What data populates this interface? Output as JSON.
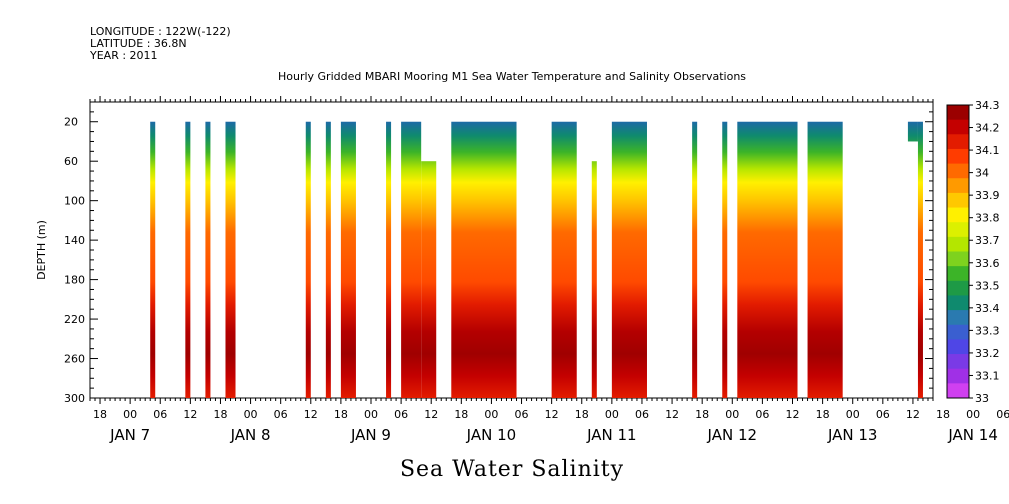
{
  "header": {
    "longitude": "LONGITUDE : 122W(-122)",
    "latitude": "LATITUDE : 36.8N",
    "year": "YEAR : 2011"
  },
  "chart_data": {
    "type": "heatmap",
    "title": "Hourly Gridded MBARI Mooring M1 Sea Water Temperature and Salinity Observations",
    "xlabel": "Sea Water Salinity",
    "ylabel": "DEPTH (m)",
    "x_range_hours": [
      0,
      168
    ],
    "x_start": "2011-01-06 16:00",
    "x_tick_labels": [
      "18",
      "00",
      "06",
      "12",
      "18",
      "00",
      "06",
      "12",
      "18",
      "00",
      "06",
      "12",
      "18",
      "00",
      "06",
      "12",
      "18",
      "00",
      "06",
      "12",
      "18",
      "00",
      "06",
      "12",
      "18",
      "00",
      "06",
      "12",
      "18",
      "00",
      "06",
      "12",
      "18",
      "00",
      "06",
      "12"
    ],
    "day_labels": [
      "JAN  7",
      "JAN  8",
      "JAN  9",
      "JAN 10",
      "JAN 11",
      "JAN 12",
      "JAN 13",
      "JAN 14"
    ],
    "ylim": [
      300,
      0
    ],
    "y_ticks": [
      20,
      60,
      100,
      140,
      180,
      220,
      260,
      300
    ],
    "colorbar": {
      "levels": [
        "34.3",
        "34.2",
        "34.1",
        "34",
        "33.9",
        "33.8",
        "33.7",
        "33.6",
        "33.5",
        "33.4",
        "33.3",
        "33.2",
        "33.1",
        "33"
      ],
      "colors": [
        "#9b0000",
        "#c40000",
        "#e31c00",
        "#ff3c00",
        "#ff6a00",
        "#ff9a00",
        "#ffc800",
        "#fff000",
        "#dcf000",
        "#b4e600",
        "#7ed21e",
        "#3cb428",
        "#1e9a46",
        "#0f8a6e",
        "#2a7ab0",
        "#3a5fd0",
        "#4f46e6",
        "#7a3ae6",
        "#a030e6",
        "#d040f0"
      ]
    },
    "data_columns_hours": [
      {
        "start": 12.0,
        "end": 13.0,
        "top": 20,
        "bottom": 300
      },
      {
        "start": 19.0,
        "end": 20.0,
        "top": 20,
        "bottom": 300
      },
      {
        "start": 23.0,
        "end": 24.0,
        "top": 20,
        "bottom": 300
      },
      {
        "start": 27.0,
        "end": 29.0,
        "top": 20,
        "bottom": 300
      },
      {
        "start": 43.0,
        "end": 44.0,
        "top": 20,
        "bottom": 300
      },
      {
        "start": 47.0,
        "end": 48.0,
        "top": 20,
        "bottom": 300
      },
      {
        "start": 50.0,
        "end": 53.0,
        "top": 20,
        "bottom": 300
      },
      {
        "start": 59.0,
        "end": 60.0,
        "top": 20,
        "bottom": 300
      },
      {
        "start": 62.0,
        "end": 66.0,
        "top": 20,
        "bottom": 300
      },
      {
        "start": 66.0,
        "end": 69.0,
        "top": 60,
        "bottom": 300
      },
      {
        "start": 72.0,
        "end": 85.0,
        "top": 20,
        "bottom": 300
      },
      {
        "start": 92.0,
        "end": 97.0,
        "top": 20,
        "bottom": 300
      },
      {
        "start": 100.0,
        "end": 101.0,
        "top": 60,
        "bottom": 300
      },
      {
        "start": 104.0,
        "end": 111.0,
        "top": 20,
        "bottom": 300
      },
      {
        "start": 120.0,
        "end": 121.0,
        "top": 20,
        "bottom": 300
      },
      {
        "start": 126.0,
        "end": 127.0,
        "top": 20,
        "bottom": 300
      },
      {
        "start": 129.0,
        "end": 141.0,
        "top": 20,
        "bottom": 300
      },
      {
        "start": 143.0,
        "end": 150.0,
        "top": 20,
        "bottom": 300
      },
      {
        "start": 163.0,
        "end": 165.0,
        "top": 20,
        "bottom": 40
      },
      {
        "start": 165.0,
        "end": 166.0,
        "top": 20,
        "bottom": 300
      }
    ],
    "grid": false
  }
}
